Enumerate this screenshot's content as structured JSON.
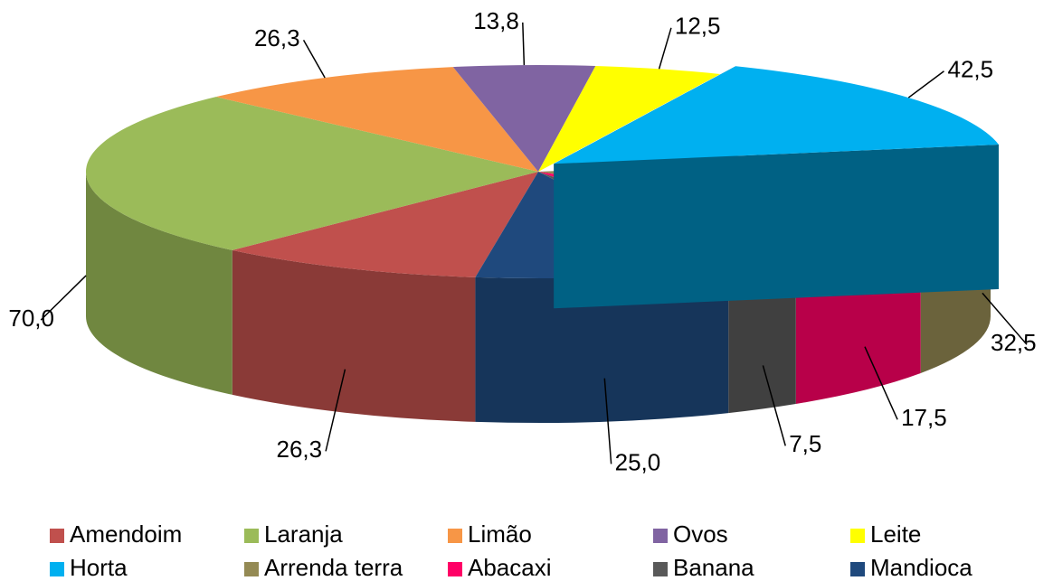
{
  "chart_data": {
    "type": "pie3d",
    "categories": [
      "Amendoim",
      "Laranja",
      "Limão",
      "Ovos",
      "Leite",
      "Horta",
      "Arrenda terra",
      "Abacaxi",
      "Banana",
      "Mandioca"
    ],
    "values": [
      26.3,
      70.0,
      26.3,
      13.8,
      12.5,
      42.5,
      32.5,
      17.5,
      7.5,
      25.0
    ],
    "value_labels": [
      "26,3",
      "70,0",
      "26,3",
      "13,8",
      "12,5",
      "42,5",
      "32,5",
      "17,5",
      "7,5",
      "25,0"
    ],
    "colors": [
      "#c0504d",
      "#9bbb59",
      "#f79646",
      "#8064a2",
      "#ffff00",
      "#00b0f0",
      "#948a54",
      "#ff0066",
      "#595959",
      "#1f497d"
    ],
    "legend": "bottom"
  }
}
